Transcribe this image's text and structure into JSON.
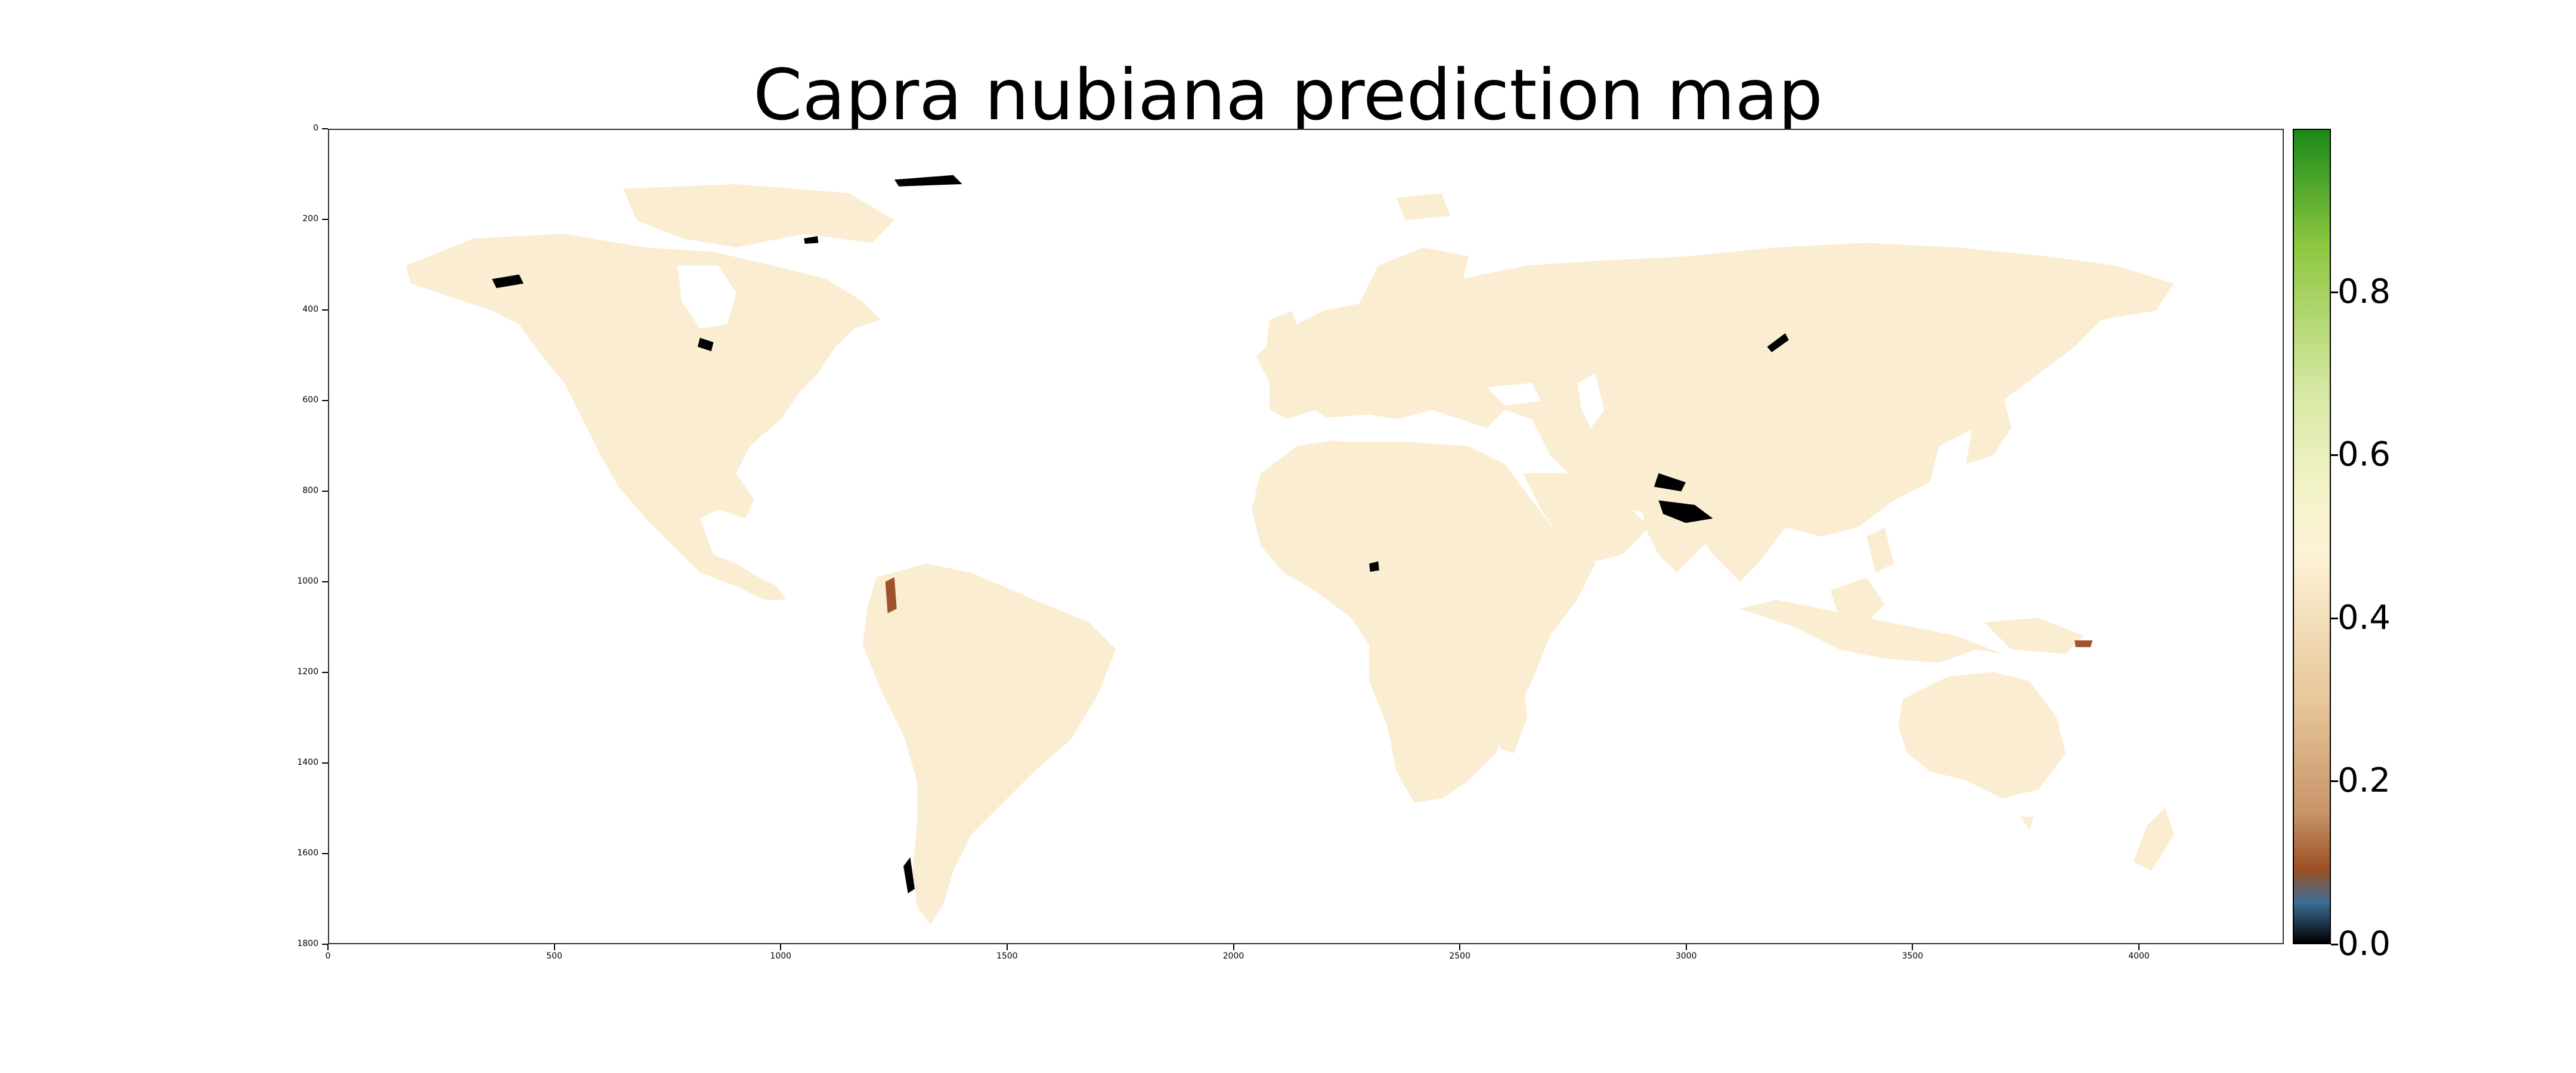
{
  "title": "Capra nubiana prediction map",
  "y_axis": {
    "ticks": [
      "0",
      "200",
      "400",
      "600",
      "800",
      "1000",
      "1200",
      "1400",
      "1600",
      "1800"
    ],
    "range": [
      0,
      1800
    ]
  },
  "x_axis": {
    "ticks": [
      "0",
      "500",
      "1000",
      "1500",
      "2000",
      "2500",
      "3000",
      "3500",
      "4000"
    ],
    "range": [
      0,
      4320
    ]
  },
  "colorbar": {
    "ticks": [
      "0.0",
      "0.2",
      "0.4",
      "0.6",
      "0.8"
    ],
    "tick_values": [
      0.0,
      0.2,
      0.4,
      0.6,
      0.8
    ],
    "range": [
      0,
      1
    ],
    "colors": {
      "bottom": "#000000",
      "blue": "#3b6f98",
      "brown": "#9c4f22",
      "tan": "#e8c79a",
      "cream": "#fdf2d6",
      "light_green": "#d6e8a2",
      "green": "#8cc63f",
      "top": "#1a8a1a"
    }
  },
  "land_color": "#fbedd2",
  "low_color": "#000000"
}
